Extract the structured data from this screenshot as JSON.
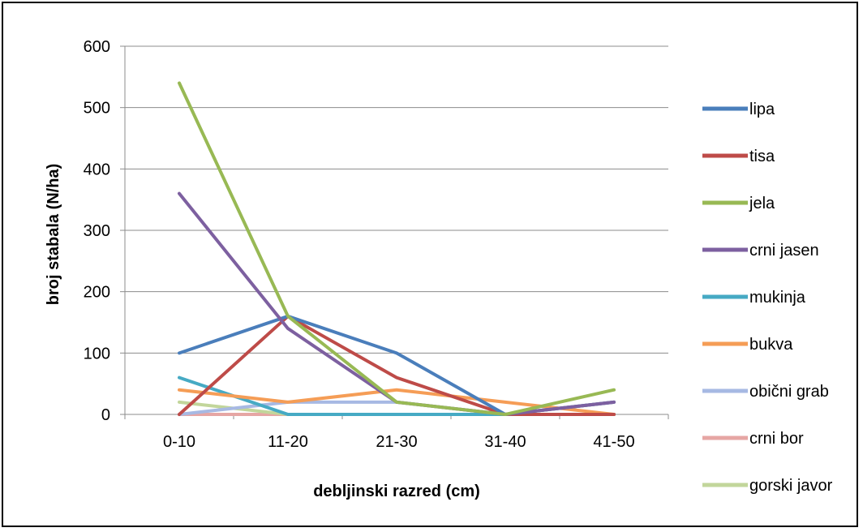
{
  "chart_data": {
    "type": "line",
    "categories": [
      "0-10",
      "11-20",
      "21-30",
      "31-40",
      "41-50"
    ],
    "xlabel": "debljinski razred (cm)",
    "ylabel": "broj stabala (N/ha)",
    "ylim": [
      0,
      600
    ],
    "yticks": [
      0,
      100,
      200,
      300,
      400,
      500,
      600
    ],
    "grid": "horizontal",
    "legend_position": "right",
    "series": [
      {
        "name": "lipa",
        "color": "#4a7ebb",
        "values": [
          100,
          160,
          100,
          0,
          20
        ]
      },
      {
        "name": "tisa",
        "color": "#be4b48",
        "values": [
          0,
          160,
          60,
          0,
          0
        ]
      },
      {
        "name": "jela",
        "color": "#98b954",
        "values": [
          540,
          160,
          20,
          0,
          40
        ]
      },
      {
        "name": "crni jasen",
        "color": "#7d60a0",
        "values": [
          360,
          140,
          20,
          0,
          20
        ]
      },
      {
        "name": "mukinja",
        "color": "#46aac4",
        "values": [
          60,
          0,
          0,
          0,
          0
        ]
      },
      {
        "name": "bukva",
        "color": "#f59d56",
        "values": [
          40,
          20,
          40,
          20,
          0
        ]
      },
      {
        "name": "obični grab",
        "color": "#a7b9e3",
        "values": [
          0,
          20,
          20,
          0,
          20
        ]
      },
      {
        "name": "crni bor",
        "color": "#e6a6a4",
        "values": [
          0,
          0,
          0,
          0,
          0
        ]
      },
      {
        "name": "gorski javor",
        "color": "#c2d69b",
        "values": [
          20,
          0,
          0,
          0,
          20
        ]
      }
    ]
  }
}
